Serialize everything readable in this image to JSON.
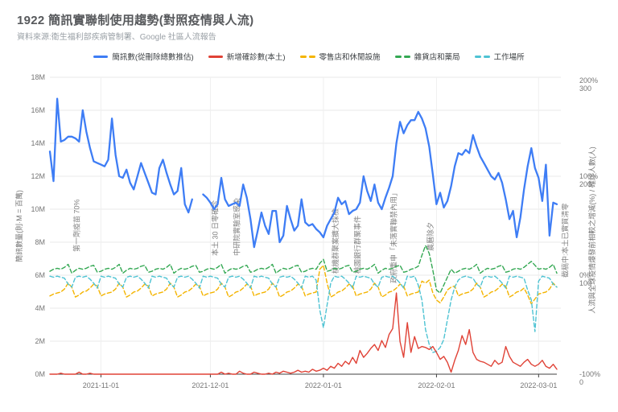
{
  "page": {
    "title": "1922 簡訊實聯制使用趨勢(對照疫情與人流)",
    "subtitle": "資料來源:衛生福利部疾病管制署、Google 社區人流報告"
  },
  "chart_data": {
    "type": "line",
    "start_date": "2021-10-18",
    "x_tick_labels": [
      "2021-11-01",
      "2021-12-01",
      "2022-01-01",
      "2022-02-01",
      "2022-03-01"
    ],
    "x_tick_days": [
      14,
      44,
      75,
      106,
      134
    ],
    "left_axis": {
      "title": "簡訊數量(則·M = 百萬)",
      "ticks": [
        "0M",
        "2M",
        "4M",
        "6M",
        "8M",
        "10M",
        "12M",
        "14M",
        "16M",
        "18M"
      ],
      "max_m": 18
    },
    "right_axis": {
      "title": "人流與全球疫情爆發前相較之增減(%) / 確診人數(人)",
      "ticks": [
        {
          "pct": "-100%",
          "count": "0"
        },
        {
          "pct": "0%",
          "count": "100"
        },
        {
          "pct": "100%",
          "count": "200"
        },
        {
          "pct": "200%",
          "count": "300"
        }
      ]
    },
    "series": [
      {
        "key": "sms",
        "name": "簡訊數(從刪除總數推估)",
        "color": "#3e7df5",
        "style": "solid",
        "axis": "left_millions",
        "values": [
          13.5,
          11.7,
          16.7,
          14.1,
          14.2,
          14.4,
          14.4,
          14.3,
          14.1,
          16.0,
          14.7,
          13.7,
          12.9,
          12.8,
          12.7,
          12.6,
          13.0,
          15.5,
          13.3,
          12.0,
          11.9,
          12.4,
          11.6,
          11.2,
          12.0,
          12.8,
          12.2,
          11.6,
          11.0,
          10.9,
          12.5,
          13.0,
          12.2,
          11.5,
          10.9,
          11.1,
          12.5,
          10.3,
          9.8,
          10.6,
          null,
          null,
          10.9,
          10.7,
          10.4,
          10.0,
          10.3,
          11.9,
          10.6,
          10.2,
          10.3,
          10.4,
          10.2,
          11.5,
          10.7,
          9.4,
          7.7,
          8.7,
          9.8,
          9.0,
          8.5,
          9.9,
          9.9,
          8.0,
          8.4,
          10.2,
          9.4,
          8.7,
          9.0,
          10.6,
          9.2,
          9.0,
          9.1,
          8.8,
          8.6,
          8.3,
          9.0,
          9.4,
          9.8,
          10.7,
          10.3,
          10.5,
          9.7,
          9.9,
          10.0,
          10.4,
          12.0,
          11.1,
          10.5,
          11.5,
          10.4,
          10.0,
          10.7,
          11.3,
          12.0,
          14.0,
          15.3,
          14.6,
          15.1,
          15.4,
          15.4,
          15.9,
          15.5,
          14.9,
          13.8,
          12.1,
          10.3,
          11.0,
          10.1,
          10.5,
          11.4,
          12.6,
          13.4,
          13.3,
          13.6,
          13.4,
          14.5,
          13.8,
          13.2,
          12.8,
          12.4,
          12.0,
          11.8,
          12.2,
          11.6,
          10.6,
          9.4,
          9.9,
          8.3,
          9.5,
          11.2,
          12.6,
          13.7,
          12.5,
          11.9,
          10.5,
          12.7,
          8.4,
          10.4,
          10.3
        ]
      },
      {
        "key": "cases",
        "name": "新增確診數(本土)",
        "color": "#e04236",
        "style": "solid",
        "axis": "right_count",
        "values": [
          0,
          0,
          0,
          1,
          0,
          0,
          0,
          0,
          2,
          0,
          0,
          1,
          0,
          0,
          0,
          0,
          0,
          0,
          0,
          0,
          0,
          0,
          0,
          0,
          0,
          0,
          0,
          0,
          0,
          0,
          0,
          0,
          0,
          0,
          0,
          0,
          0,
          0,
          0,
          0,
          0,
          0,
          0,
          0,
          0,
          0,
          0,
          2,
          0,
          1,
          0,
          0,
          3,
          1,
          0,
          0,
          2,
          1,
          0,
          0,
          1,
          0,
          2,
          1,
          3,
          2,
          1,
          2,
          4,
          2,
          3,
          2,
          5,
          3,
          4,
          6,
          4,
          8,
          6,
          11,
          8,
          13,
          10,
          17,
          11,
          24,
          17,
          21,
          26,
          30,
          24,
          34,
          27,
          40,
          46,
          82,
          33,
          17,
          52,
          22,
          38,
          26,
          28,
          27,
          25,
          28,
          22,
          15,
          18,
          12,
          2,
          14,
          24,
          39,
          30,
          45,
          22,
          15,
          13,
          12,
          10,
          8,
          14,
          10,
          12,
          28,
          18,
          12,
          10,
          8,
          12,
          15,
          10,
          8,
          10,
          14,
          8,
          6,
          10,
          5
        ]
      },
      {
        "key": "retail",
        "name": "零售店和休閒設施",
        "color": "#f4b400",
        "style": "dashed",
        "axis": "right_pct",
        "values": [
          -21,
          -19,
          -18,
          -17,
          -14,
          -8,
          -12,
          -22,
          -20,
          -17,
          -16,
          -13,
          -9,
          -11,
          -21,
          -19,
          -18,
          -17,
          -14,
          -8,
          -12,
          -22,
          -20,
          -17,
          -16,
          -13,
          -9,
          -11,
          -21,
          -19,
          -18,
          -17,
          -14,
          -8,
          -12,
          -22,
          -20,
          -17,
          -16,
          -13,
          -9,
          -11,
          -21,
          -19,
          -18,
          -17,
          -14,
          -8,
          -12,
          -22,
          -20,
          -17,
          -16,
          -13,
          -9,
          -11,
          -21,
          -19,
          -18,
          -17,
          -14,
          -8,
          -12,
          -22,
          -20,
          -17,
          -16,
          -13,
          -9,
          -11,
          -21,
          -19,
          -18,
          -17,
          6,
          10,
          -8,
          -22,
          -20,
          -17,
          -16,
          -13,
          -9,
          -11,
          -21,
          -19,
          -18,
          -17,
          -14,
          -8,
          -12,
          -22,
          -20,
          -17,
          -16,
          -13,
          -9,
          -11,
          -21,
          -19,
          -18,
          -17,
          -6,
          -8,
          -5,
          -18,
          -25,
          -28,
          -22,
          -15,
          -12,
          -11,
          -21,
          -19,
          -18,
          -17,
          -14,
          -8,
          -12,
          -22,
          -20,
          -17,
          -16,
          -13,
          -9,
          -11,
          -22,
          -20,
          -17,
          -16,
          -13,
          -20,
          -29,
          -24,
          -19,
          -18,
          -17,
          -14,
          -8,
          -12
        ]
      },
      {
        "key": "grocery",
        "name": "雜貨店和藥局",
        "color": "#34a853",
        "style": "dashed",
        "axis": "right_pct",
        "values": [
          4,
          6,
          7,
          6,
          8,
          11,
          2,
          5,
          7,
          6,
          7,
          9,
          10,
          3,
          4,
          6,
          7,
          6,
          8,
          11,
          2,
          5,
          7,
          6,
          7,
          9,
          10,
          3,
          4,
          6,
          7,
          6,
          8,
          11,
          2,
          5,
          7,
          6,
          7,
          9,
          10,
          3,
          4,
          6,
          7,
          6,
          8,
          11,
          2,
          5,
          7,
          6,
          7,
          9,
          10,
          3,
          4,
          6,
          7,
          6,
          8,
          11,
          2,
          5,
          7,
          6,
          7,
          9,
          10,
          3,
          4,
          6,
          7,
          6,
          12,
          16,
          4,
          5,
          7,
          6,
          7,
          9,
          10,
          3,
          4,
          6,
          7,
          6,
          8,
          11,
          2,
          5,
          7,
          6,
          7,
          9,
          10,
          3,
          4,
          6,
          7,
          9,
          20,
          30,
          22,
          5,
          -15,
          -18,
          -10,
          -2,
          6,
          2,
          4,
          6,
          7,
          6,
          8,
          11,
          2,
          5,
          7,
          6,
          7,
          9,
          10,
          3,
          4,
          6,
          7,
          6,
          8,
          11,
          14,
          10,
          6,
          7,
          6,
          8,
          11,
          2
        ]
      },
      {
        "key": "workplace",
        "name": "工作場所",
        "color": "#4ec3d3",
        "style": "dashed",
        "axis": "right_pct",
        "values": [
          -1,
          -2,
          -1,
          -2,
          -3,
          -9,
          -12,
          -2,
          -1,
          -2,
          -1,
          -4,
          -8,
          -13,
          -1,
          -2,
          -1,
          -2,
          -3,
          -9,
          -12,
          -2,
          -1,
          -2,
          -1,
          -4,
          -8,
          -13,
          -1,
          -2,
          -1,
          -2,
          -3,
          -9,
          -12,
          -2,
          -1,
          -2,
          -1,
          -4,
          -8,
          -13,
          -1,
          -2,
          -1,
          -2,
          -3,
          -9,
          -12,
          -2,
          -1,
          -2,
          -1,
          -4,
          -8,
          -13,
          -1,
          -2,
          -1,
          -2,
          -3,
          -9,
          -12,
          -2,
          -1,
          -2,
          -1,
          -4,
          -8,
          -13,
          -1,
          -2,
          -1,
          -5,
          -35,
          -53,
          -30,
          -8,
          -1,
          -2,
          -1,
          -4,
          -8,
          -13,
          -1,
          -2,
          -1,
          -2,
          -3,
          -9,
          -12,
          -2,
          -1,
          -2,
          -1,
          -4,
          -8,
          -13,
          -1,
          -2,
          -1,
          -10,
          -25,
          -55,
          -70,
          -78,
          -77,
          -73,
          -65,
          -45,
          -25,
          -12,
          -5,
          -2,
          -1,
          -2,
          -3,
          -9,
          -12,
          -2,
          -1,
          -2,
          -1,
          -4,
          -8,
          -13,
          -1,
          -2,
          -1,
          -2,
          -3,
          -15,
          -25,
          -57,
          -6,
          -1,
          -2,
          -3,
          -9,
          -12
        ]
      }
    ],
    "annotations": [
      {
        "label": "第一劑疫苗 70%",
        "day": 8,
        "y_bottom": 313
      },
      {
        "label": "本土 30 日零確診",
        "day": 46,
        "y_bottom": 318
      },
      {
        "label": "中研院實驗室感染",
        "day": 52,
        "y_bottom": 318
      },
      {
        "label": "桃機群聚案擴大採檢",
        "day": 79,
        "y_bottom": 340
      },
      {
        "label": "桃園銀行群聚事件",
        "day": 85,
        "y_bottom": 340
      },
      {
        "label": "政府重申「未落實聯禁內用」",
        "day": 95,
        "y_bottom": 352
      },
      {
        "label": "農曆除夕",
        "day": 105,
        "y_bottom": 312
      },
      {
        "label": "截稿中:本土已實質清零",
        "day": 142,
        "y_bottom": 345
      }
    ]
  },
  "colors": {
    "grid": "#e8e8e8",
    "axis_line": "#424242",
    "sms_blue": "#3e7df5",
    "cases_red": "#e04236",
    "retail_yellow": "#f4b400",
    "grocery_green": "#34a853",
    "workplace_teal": "#4ec3d3"
  }
}
